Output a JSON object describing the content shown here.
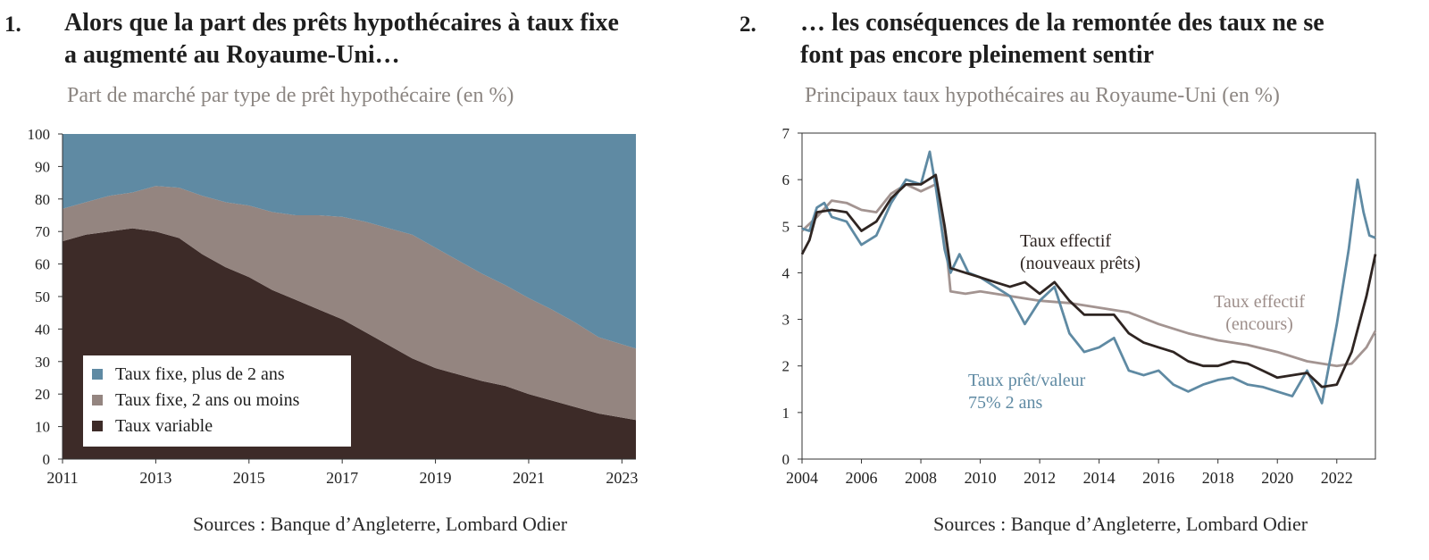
{
  "panel1": {
    "number": "1.",
    "title_line1": "Alors que la part des prêts hypothécaires à taux fixe",
    "title_line2": "a augmenté au Royaume-Uni…",
    "subtitle": "Part de marché par type de prêt hypothécaire (en %)",
    "source": "Sources : Banque d’Angleterre, Lombard Odier"
  },
  "panel2": {
    "number": "2.",
    "title_line1": "… les conséquences de la remontée des taux ne se",
    "title_line2": "font pas encore pleinement sentir",
    "subtitle": "Principaux taux hypothécaires au Royaume-Uni (en %)",
    "source": "Sources : Banque d’Angleterre, Lombard Odier"
  },
  "colors": {
    "fixed_long": "#5f8aa3",
    "fixed_short": "#948580",
    "variable": "#3d2b28",
    "effective_new": "#2f2522",
    "effective_outstanding": "#a39491",
    "ltv75": "#5f8aa3"
  },
  "chart_data": [
    {
      "type": "area",
      "stacked": true,
      "x": [
        2011,
        2011.5,
        2012,
        2012.5,
        2013,
        2013.5,
        2014,
        2014.5,
        2015,
        2015.5,
        2016,
        2016.5,
        2017,
        2017.5,
        2018,
        2018.5,
        2019,
        2019.5,
        2020,
        2020.5,
        2021,
        2021.5,
        2022,
        2022.5,
        2023
      ],
      "series": [
        {
          "name": "Taux variable",
          "values": [
            67,
            69,
            70,
            71,
            70,
            68,
            63,
            59,
            56,
            52,
            49,
            46,
            43,
            39,
            35,
            31,
            28,
            26,
            24,
            22.5,
            20,
            18,
            16,
            14,
            12
          ]
        },
        {
          "name": "Taux fixe, 2 ans ou moins",
          "values": [
            10,
            10,
            11,
            11,
            14,
            15.5,
            18,
            20,
            22,
            24,
            26,
            29,
            31.5,
            34,
            36,
            38,
            37,
            35,
            33,
            31,
            29.5,
            28,
            26,
            23.5,
            22
          ]
        },
        {
          "name": "Taux fixe, plus de 2 ans",
          "values": [
            23,
            21,
            19,
            18,
            16,
            16.5,
            19,
            21,
            22,
            24,
            25,
            25,
            25.5,
            27,
            29,
            31,
            35,
            39,
            43,
            46.5,
            50.5,
            54,
            58,
            62.5,
            66
          ]
        }
      ],
      "xlim": [
        2011,
        2023.3
      ],
      "ylim": [
        0,
        100
      ],
      "xticks": [
        "2011",
        "2013",
        "2015",
        "2017",
        "2019",
        "2021",
        "2023"
      ],
      "yticks": [
        "0",
        "10",
        "20",
        "30",
        "40",
        "50",
        "60",
        "70",
        "80",
        "90",
        "100"
      ],
      "legend": "bottom-left",
      "grid": false
    },
    {
      "type": "line",
      "xlim": [
        2004,
        2023.3
      ],
      "ylim": [
        0,
        7
      ],
      "xticks": [
        "2004",
        "2006",
        "2008",
        "2010",
        "2012",
        "2014",
        "2016",
        "2018",
        "2020",
        "2022"
      ],
      "yticks": [
        "0",
        "1",
        "2",
        "3",
        "4",
        "5",
        "6",
        "7"
      ],
      "grid": false,
      "series": [
        {
          "name": "Taux effectif (nouveaux prêts)",
          "annotation_line1": "Taux effectif",
          "annotation_line2": "(nouveaux prêts)",
          "x": [
            2004,
            2004.25,
            2004.5,
            2005,
            2005.5,
            2006,
            2006.5,
            2007,
            2007.5,
            2008,
            2008.5,
            2008.8,
            2009,
            2009.5,
            2010,
            2010.5,
            2011,
            2011.5,
            2012,
            2012.5,
            2013,
            2013.5,
            2014,
            2014.5,
            2015,
            2015.5,
            2016,
            2016.5,
            2017,
            2017.5,
            2018,
            2018.5,
            2019,
            2019.5,
            2020,
            2020.5,
            2021,
            2021.5,
            2022,
            2022.5,
            2023,
            2023.3
          ],
          "y": [
            4.4,
            4.7,
            5.3,
            5.35,
            5.3,
            4.9,
            5.1,
            5.6,
            5.9,
            5.9,
            6.1,
            5.0,
            4.1,
            4.0,
            3.9,
            3.8,
            3.7,
            3.8,
            3.55,
            3.8,
            3.4,
            3.1,
            3.1,
            3.1,
            2.7,
            2.5,
            2.4,
            2.3,
            2.1,
            2.0,
            2.0,
            2.1,
            2.05,
            1.9,
            1.75,
            1.8,
            1.85,
            1.55,
            1.6,
            2.3,
            3.5,
            4.4
          ]
        },
        {
          "name": "Taux effectif (encours)",
          "annotation_line1": "Taux effectif",
          "annotation_line2": "(encours)",
          "x": [
            2004,
            2004.5,
            2005,
            2005.5,
            2006,
            2006.5,
            2007,
            2007.5,
            2008,
            2008.5,
            2008.8,
            2009,
            2009.5,
            2010,
            2011,
            2012,
            2013,
            2014,
            2015,
            2016,
            2017,
            2018,
            2019,
            2020,
            2021,
            2022,
            2022.5,
            2023,
            2023.3
          ],
          "y": [
            4.9,
            5.2,
            5.55,
            5.5,
            5.35,
            5.3,
            5.7,
            5.9,
            5.75,
            5.9,
            4.9,
            3.6,
            3.55,
            3.6,
            3.5,
            3.4,
            3.35,
            3.25,
            3.15,
            2.9,
            2.7,
            2.55,
            2.45,
            2.3,
            2.1,
            2.0,
            2.05,
            2.4,
            2.75
          ]
        },
        {
          "name": "Taux prêt/valeur 75% 2 ans",
          "annotation_line1": "Taux prêt/valeur",
          "annotation_line2": "75% 2 ans",
          "x": [
            2004,
            2004.25,
            2004.5,
            2004.75,
            2005,
            2005.5,
            2006,
            2006.5,
            2007,
            2007.5,
            2008,
            2008.3,
            2008.5,
            2008.8,
            2009,
            2009.3,
            2009.6,
            2010,
            2010.5,
            2011,
            2011.5,
            2012,
            2012.5,
            2013,
            2013.5,
            2014,
            2014.5,
            2015,
            2015.5,
            2016,
            2016.5,
            2017,
            2017.5,
            2018,
            2018.5,
            2019,
            2019.5,
            2020,
            2020.5,
            2021,
            2021.5,
            2022,
            2022.4,
            2022.7,
            2022.9,
            2023.1,
            2023.3
          ],
          "y": [
            4.95,
            4.9,
            5.4,
            5.5,
            5.2,
            5.1,
            4.6,
            4.8,
            5.5,
            6.0,
            5.9,
            6.6,
            5.85,
            4.5,
            4.0,
            4.4,
            4.0,
            3.9,
            3.7,
            3.5,
            2.9,
            3.4,
            3.7,
            2.7,
            2.3,
            2.4,
            2.6,
            1.9,
            1.8,
            1.9,
            1.6,
            1.45,
            1.6,
            1.7,
            1.75,
            1.6,
            1.55,
            1.45,
            1.35,
            1.9,
            1.2,
            2.9,
            4.5,
            6.0,
            5.3,
            4.8,
            4.75
          ]
        }
      ]
    }
  ]
}
